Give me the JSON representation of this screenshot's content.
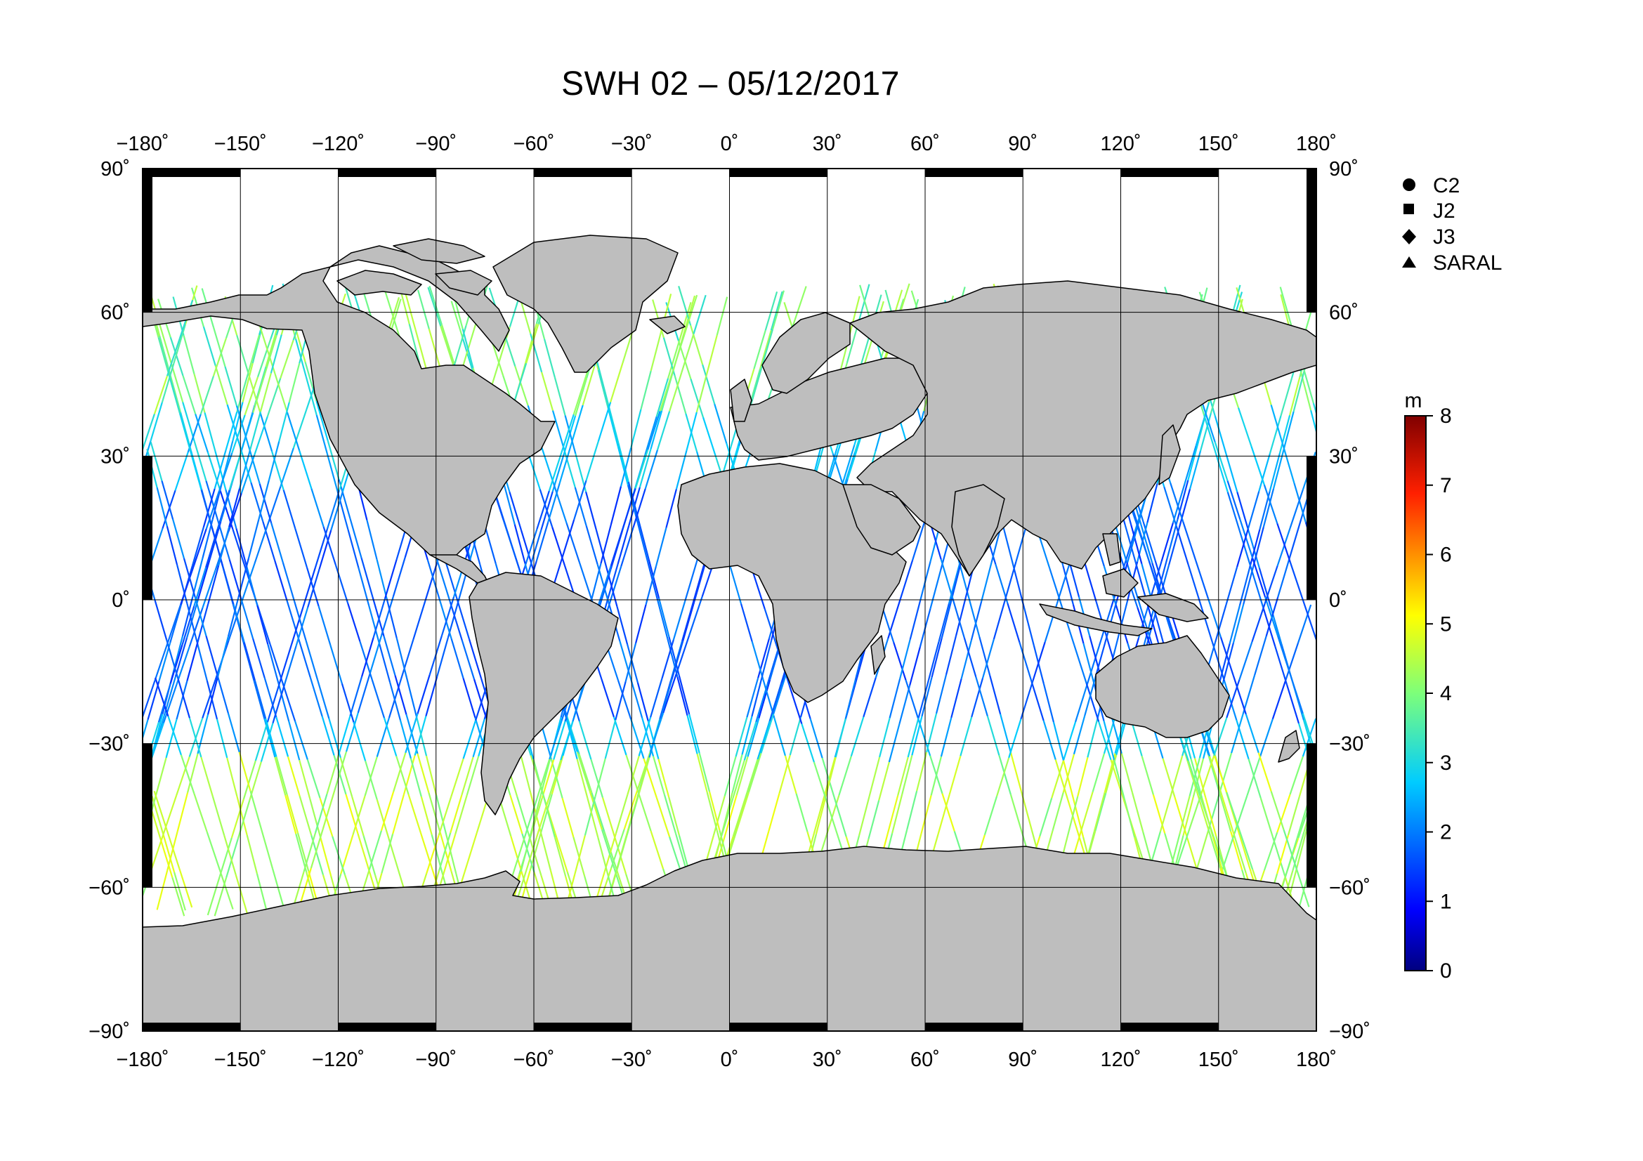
{
  "title": "SWH 02 – 05/12/2017",
  "map": {
    "projection": "equirectangular",
    "lon_range": [
      -180,
      180
    ],
    "lat_range": [
      -90,
      90
    ],
    "lon_ticks": [
      -180,
      -150,
      -120,
      -90,
      -60,
      -30,
      0,
      30,
      60,
      90,
      120,
      150,
      180
    ],
    "lat_ticks": [
      90,
      60,
      30,
      0,
      -30,
      -60,
      -90
    ],
    "lon_tick_labels": [
      "−180˚",
      "−150˚",
      "−120˚",
      "−90˚",
      "−60˚",
      "−30˚",
      "0˚",
      "30˚",
      "60˚",
      "90˚",
      "120˚",
      "150˚",
      "180˚"
    ],
    "lat_tick_labels": [
      "90˚",
      "60˚",
      "30˚",
      "0˚",
      "−30˚",
      "−60˚",
      "−90˚"
    ],
    "land_color": "#bebebe",
    "ocean_color": "#ffffff",
    "grid": true
  },
  "legend": {
    "items": [
      {
        "label": "C2",
        "marker": "circle-icon"
      },
      {
        "label": "J2",
        "marker": "square-icon"
      },
      {
        "label": "J3",
        "marker": "diamond-icon"
      },
      {
        "label": "SARAL",
        "marker": "triangle-icon"
      }
    ]
  },
  "colorbar": {
    "unit": "m",
    "min": 0,
    "max": 8,
    "tick_labels": [
      "8",
      "7",
      "6",
      "5",
      "4",
      "3",
      "2",
      "1",
      "0"
    ],
    "colormap": "jet"
  }
}
